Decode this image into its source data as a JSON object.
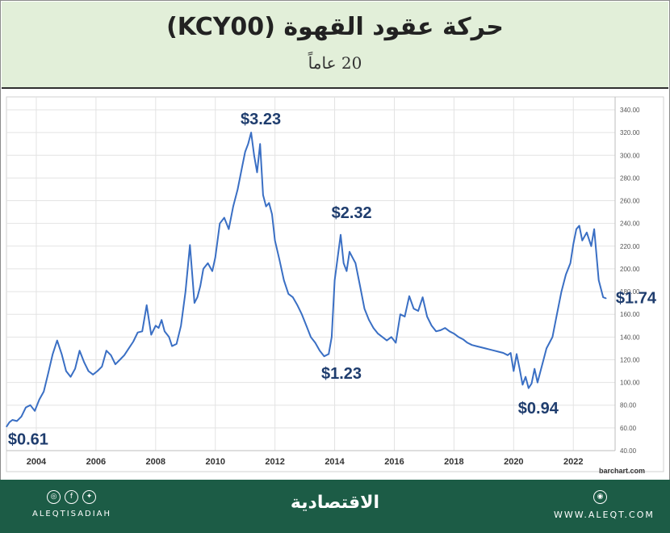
{
  "header": {
    "title": "حركة عقود القهوة (KCY00)",
    "subtitle": "20 عاماً"
  },
  "chart_data": {
    "type": "line",
    "title": "حركة عقود القهوة (KCY00)",
    "subtitle": "20 عاماً",
    "xlim": [
      2003.0,
      2023.4
    ],
    "ylim": [
      40,
      340
    ],
    "x_ticks": [
      2004,
      2006,
      2008,
      2010,
      2012,
      2014,
      2016,
      2018,
      2020,
      2022
    ],
    "x_tick_labels": [
      "2004",
      "2006",
      "2008",
      "2010",
      "2012",
      "2014",
      "2016",
      "2018",
      "2020",
      "2022"
    ],
    "y_ticks": [
      40,
      60,
      80,
      100,
      120,
      140,
      160,
      180,
      200,
      220,
      240,
      260,
      280,
      300,
      320,
      340
    ],
    "y_tick_labels": [
      "40.00",
      "60.00",
      "80.00",
      "100.00",
      "120.00",
      "140.00",
      "160.00",
      "180.00",
      "200.00",
      "220.00",
      "240.00",
      "260.00",
      "280.00",
      "300.00",
      "320.00",
      "340.00"
    ],
    "grid": true,
    "y_axis_side": "right",
    "line_color": "#3a6fc4",
    "series": [
      {
        "x": [
          2003.0,
          2003.1,
          2003.2,
          2003.35,
          2003.5,
          2003.65,
          2003.8,
          2003.95,
          2004.1,
          2004.25,
          2004.4,
          2004.55,
          2004.7,
          2004.85,
          2005.0,
          2005.15,
          2005.3,
          2005.45,
          2005.6,
          2005.75,
          2005.9,
          2006.05,
          2006.2,
          2006.35,
          2006.5,
          2006.65,
          2006.8,
          2006.95,
          2007.1,
          2007.25,
          2007.4,
          2007.55,
          2007.7,
          2007.85,
          2008.0,
          2008.1,
          2008.2,
          2008.3,
          2008.45,
          2008.55,
          2008.7,
          2008.85,
          2009.0,
          2009.15,
          2009.3,
          2009.4,
          2009.5,
          2009.6,
          2009.75,
          2009.9,
          2010.0,
          2010.15,
          2010.3,
          2010.45,
          2010.6,
          2010.75,
          2010.9,
          2011.0,
          2011.1,
          2011.2,
          2011.3,
          2011.4,
          2011.5,
          2011.6,
          2011.7,
          2011.8,
          2011.9,
          2012.0,
          2012.15,
          2012.3,
          2012.45,
          2012.6,
          2012.75,
          2012.9,
          2013.05,
          2013.2,
          2013.35,
          2013.5,
          2013.65,
          2013.8,
          2013.9,
          2014.0,
          2014.1,
          2014.2,
          2014.3,
          2014.4,
          2014.5,
          2014.6,
          2014.7,
          2014.85,
          2015.0,
          2015.15,
          2015.3,
          2015.45,
          2015.6,
          2015.75,
          2015.9,
          2016.05,
          2016.2,
          2016.35,
          2016.5,
          2016.65,
          2016.8,
          2016.95,
          2017.1,
          2017.25,
          2017.4,
          2017.55,
          2017.7,
          2017.85,
          2018.0,
          2018.15,
          2018.3,
          2018.45,
          2018.6,
          2018.75,
          2018.9,
          2019.05,
          2019.2,
          2019.35,
          2019.5,
          2019.65,
          2019.8,
          2019.9,
          2020.0,
          2020.1,
          2020.2,
          2020.3,
          2020.4,
          2020.5,
          2020.6,
          2020.7,
          2020.8,
          2020.9,
          2021.0,
          2021.1,
          2021.2,
          2021.3,
          2021.45,
          2021.6,
          2021.75,
          2021.9,
          2022.0,
          2022.1,
          2022.2,
          2022.3,
          2022.45,
          2022.6,
          2022.7,
          2022.85,
          2023.0,
          2023.1
        ],
        "y": [
          61,
          65,
          67,
          66,
          70,
          78,
          80,
          75,
          85,
          92,
          108,
          125,
          137,
          125,
          110,
          105,
          112,
          128,
          118,
          110,
          107,
          110,
          114,
          128,
          124,
          116,
          120,
          124,
          130,
          136,
          144,
          145,
          168,
          142,
          150,
          148,
          155,
          145,
          140,
          132,
          134,
          150,
          180,
          221,
          170,
          175,
          185,
          200,
          205,
          198,
          210,
          240,
          245,
          235,
          255,
          270,
          290,
          303,
          310,
          320,
          300,
          285,
          310,
          265,
          255,
          258,
          248,
          225,
          208,
          190,
          178,
          175,
          168,
          160,
          150,
          140,
          135,
          128,
          123,
          125,
          140,
          190,
          210,
          230,
          205,
          198,
          215,
          210,
          205,
          185,
          165,
          155,
          148,
          143,
          140,
          137,
          140,
          135,
          160,
          158,
          176,
          165,
          163,
          175,
          158,
          150,
          145,
          146,
          148,
          145,
          143,
          140,
          138,
          135,
          133,
          132,
          131,
          130,
          129,
          128,
          127,
          126,
          124,
          126,
          110,
          125,
          112,
          98,
          105,
          95,
          99,
          112,
          100,
          110,
          120,
          130,
          135,
          140,
          160,
          180,
          195,
          205,
          222,
          235,
          238,
          225,
          232,
          220,
          235,
          190,
          175,
          174
        ]
      }
    ],
    "annotations": [
      {
        "text": "$0.61",
        "x": 2003.05,
        "y": 61
      },
      {
        "text": "$3.23",
        "x": 2011.2,
        "y": 323
      },
      {
        "text": "$2.32",
        "x": 2014.3,
        "y": 232
      },
      {
        "text": "$1.23",
        "x": 2013.85,
        "y": 123
      },
      {
        "text": "$0.94",
        "x": 2020.5,
        "y": 94
      },
      {
        "text": "$1.74",
        "x": 2023.1,
        "y": 174
      }
    ],
    "source": "barchart.com"
  },
  "footer": {
    "handle": "ALEQTISADIAH",
    "logo": "الاقتصادية",
    "website": "WWW.ALEQT.COM",
    "social_icons": [
      "instagram-icon",
      "facebook-icon",
      "twitter-icon"
    ],
    "background_color": "#1c5c46"
  }
}
